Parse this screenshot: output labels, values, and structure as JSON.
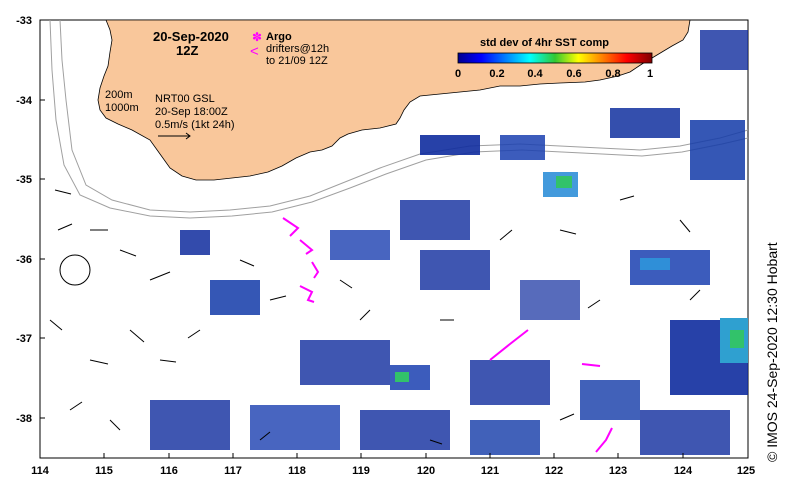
{
  "date_title": "20-Sep-2020",
  "time_title": "12Z",
  "legend": {
    "argo_label": "Argo",
    "drifters_line1": "drifters@12h",
    "drifters_line2": "to 21/09 12Z",
    "argo_symbol": "✽",
    "drifter_symbol": "<"
  },
  "isobaths": {
    "line1": "200m",
    "line2": "1000m"
  },
  "source_info": {
    "line1": "NRT00 GSL",
    "line2": "20-Sep 18:00Z",
    "line3": "0.5m/s (1kt 24h)"
  },
  "colorbar": {
    "title": "std dev of 4hr SST comp",
    "ticks": [
      "0",
      "0.2",
      "0.4",
      "0.6",
      "0.8",
      "1"
    ],
    "range": [
      0,
      1
    ]
  },
  "axes": {
    "x_ticks": [
      "114",
      "115",
      "116",
      "117",
      "118",
      "119",
      "120",
      "121",
      "122",
      "123",
      "124",
      "125"
    ],
    "y_ticks": [
      "-33",
      "-34",
      "-35",
      "-36",
      "-37",
      "-38"
    ],
    "lon_range": [
      114,
      125
    ],
    "lat_range": [
      -33,
      -38.5
    ]
  },
  "credit": "© IMOS 24-Sep-2020 12:30 Hobart",
  "colors": {
    "land": "#f9c79b",
    "coast": "#000000",
    "isobath": "#a0a0a0",
    "drifter": "#ff00ff",
    "data_low": "#102a9a"
  }
}
